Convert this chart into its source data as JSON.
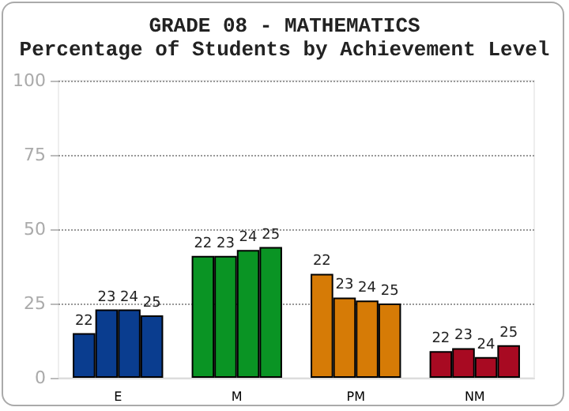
{
  "chart_data": {
    "type": "bar",
    "title": "GRADE 08 - MATHEMATICS",
    "subtitle": "Percentage of Students by Achievement Level",
    "categories": [
      "E",
      "M",
      "PM",
      "NM"
    ],
    "series": [
      {
        "name": "22",
        "colors": [
          "#0a3d8f",
          "#0a9424",
          "#d67b06",
          "#a80a22"
        ],
        "values": [
          15,
          41,
          35,
          9
        ]
      },
      {
        "name": "23",
        "colors": [
          "#0a3d8f",
          "#0a9424",
          "#d67b06",
          "#a80a22"
        ],
        "values": [
          23,
          41,
          27,
          10
        ]
      },
      {
        "name": "24",
        "colors": [
          "#0a3d8f",
          "#0a9424",
          "#d67b06",
          "#a80a22"
        ],
        "values": [
          23,
          43,
          26,
          7
        ]
      },
      {
        "name": "25",
        "colors": [
          "#0a3d8f",
          "#0a9424",
          "#d67b06",
          "#a80a22"
        ],
        "values": [
          21,
          44,
          25,
          11
        ]
      }
    ],
    "ylim": [
      0,
      100
    ],
    "yticks": [
      0,
      25,
      50,
      75,
      100
    ],
    "grid": "y",
    "legend": false
  }
}
